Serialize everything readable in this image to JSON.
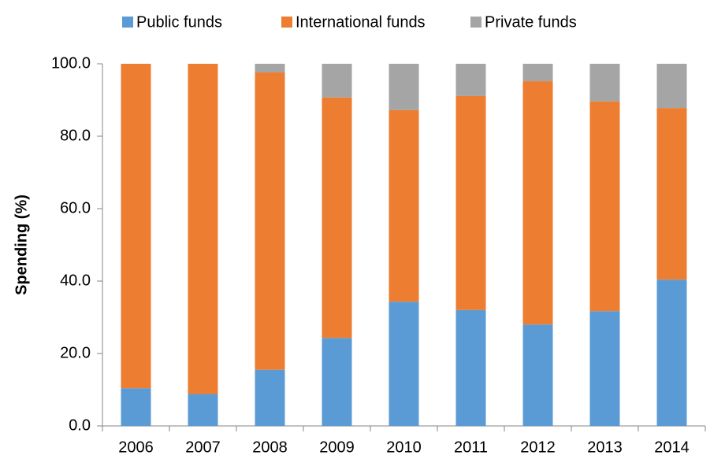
{
  "chart_data": {
    "type": "stacked_bar",
    "y_label": "Spending  (%)",
    "categories": [
      "2006",
      "2007",
      "2008",
      "2009",
      "2010",
      "2011",
      "2012",
      "2013",
      "2014"
    ],
    "series": [
      {
        "name": "Public funds",
        "color": "#5b9bd5",
        "values": [
          10.4,
          8.8,
          15.5,
          24.3,
          34.3,
          32.0,
          28.0,
          31.7,
          40.4
        ]
      },
      {
        "name": "International funds",
        "color": "#ed7d31",
        "values": [
          89.6,
          91.2,
          82.1,
          66.4,
          52.9,
          59.1,
          67.2,
          57.9,
          47.4
        ]
      },
      {
        "name": "Private funds",
        "color": "#a5a5a5",
        "values": [
          0,
          0,
          2.4,
          9.3,
          12.8,
          8.9,
          4.8,
          10.4,
          12.2
        ]
      }
    ],
    "ylim": [
      0,
      100
    ],
    "yticks": [
      {
        "value": 0,
        "label": "0.0"
      },
      {
        "value": 20,
        "label": "20.0"
      },
      {
        "value": 40,
        "label": "40.0"
      },
      {
        "value": 60,
        "label": "60.0"
      },
      {
        "value": 80,
        "label": "80.0"
      },
      {
        "value": 100,
        "label": "100.0"
      }
    ],
    "legend": "top",
    "grid": false
  }
}
